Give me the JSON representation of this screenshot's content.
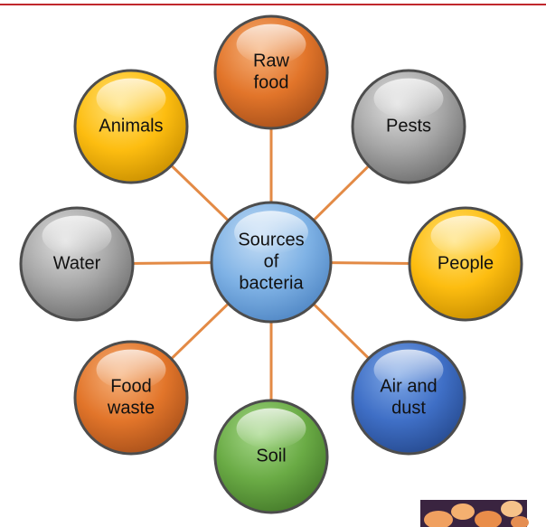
{
  "center": {
    "label": [
      "Sources",
      "of",
      "bacteria"
    ]
  },
  "nodes": [
    {
      "label": [
        "Raw",
        "food"
      ]
    },
    {
      "label": [
        "Pests"
      ]
    },
    {
      "label": [
        "People"
      ]
    },
    {
      "label": [
        "Air and",
        "dust"
      ]
    },
    {
      "label": [
        "Soil"
      ]
    },
    {
      "label": [
        "Food",
        "waste"
      ]
    },
    {
      "label": [
        "Water"
      ]
    },
    {
      "label": [
        "Animals"
      ]
    }
  ]
}
